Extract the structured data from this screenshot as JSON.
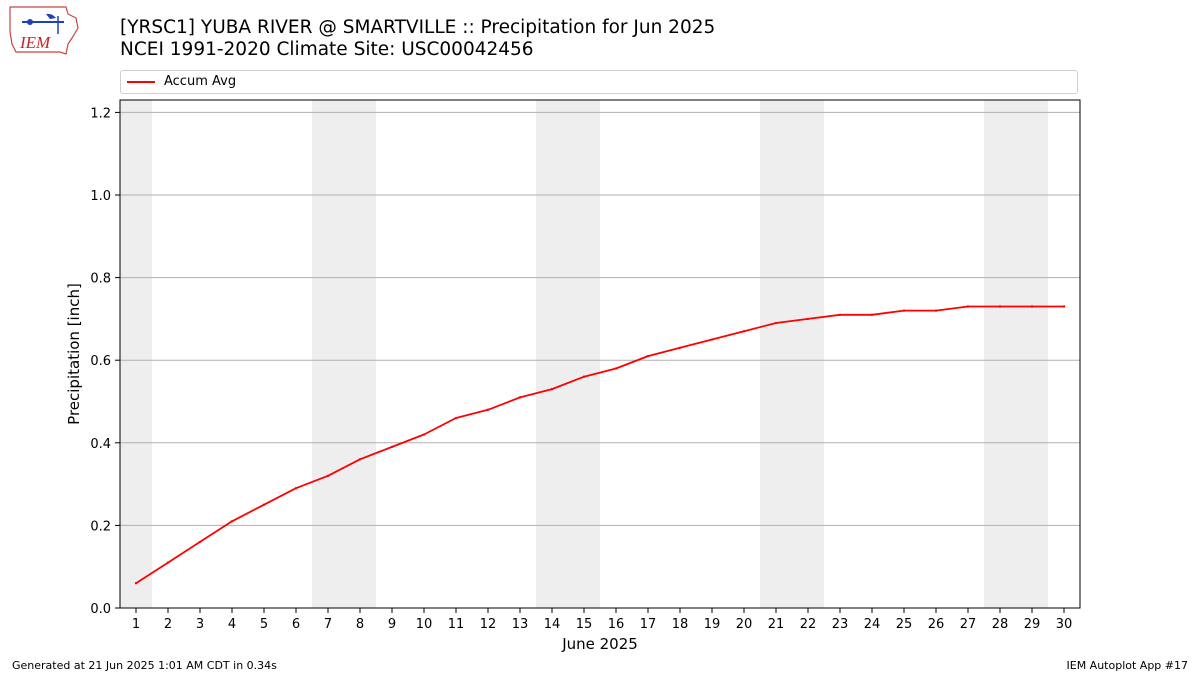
{
  "logo": {
    "text": "IEM"
  },
  "title": {
    "line1": "[YRSC1] YUBA RIVER @ SMARTVILLE :: Precipitation for Jun 2025",
    "line2": "NCEI 1991-2020 Climate Site: USC00042456"
  },
  "footer": {
    "left": "Generated at 21 Jun 2025 1:01 AM CDT in 0.34s",
    "right": "IEM Autoplot App #17"
  },
  "colors": {
    "series": "#ff0000",
    "weekend_band": "#eeeeee",
    "grid": "#b0b0b0"
  },
  "chart_data": {
    "type": "line",
    "xlabel": "June 2025",
    "ylabel": "Precipitation [inch]",
    "x": [
      1,
      2,
      3,
      4,
      5,
      6,
      7,
      8,
      9,
      10,
      11,
      12,
      13,
      14,
      15,
      16,
      17,
      18,
      19,
      20,
      21,
      22,
      23,
      24,
      25,
      26,
      27,
      28,
      29,
      30
    ],
    "xlim": [
      0.5,
      30.5
    ],
    "ylim": [
      0,
      1.23
    ],
    "yticks": [
      0.0,
      0.2,
      0.4,
      0.6,
      0.8,
      1.0,
      1.2
    ],
    "ytick_labels": [
      "0.0",
      "0.2",
      "0.4",
      "0.6",
      "0.8",
      "1.0",
      "1.2"
    ],
    "grid": "horizontal",
    "legend_position": "top",
    "weekend_bands": [
      [
        0.5,
        1.5
      ],
      [
        6.5,
        8.5
      ],
      [
        13.5,
        15.5
      ],
      [
        20.5,
        22.5
      ],
      [
        27.5,
        29.5
      ]
    ],
    "series": [
      {
        "name": "Accum Avg",
        "color": "#ff0000",
        "values": [
          0.06,
          0.11,
          0.16,
          0.21,
          0.25,
          0.29,
          0.32,
          0.36,
          0.39,
          0.42,
          0.46,
          0.48,
          0.51,
          0.53,
          0.56,
          0.58,
          0.61,
          0.63,
          0.65,
          0.67,
          0.69,
          0.7,
          0.71,
          0.71,
          0.72,
          0.72,
          0.73,
          0.73,
          0.73,
          0.73
        ]
      }
    ]
  }
}
